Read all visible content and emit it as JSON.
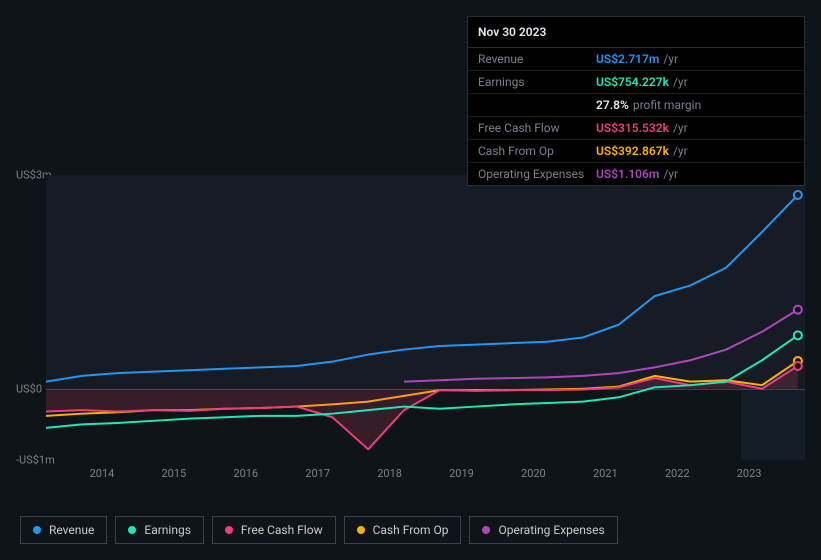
{
  "tooltip": {
    "date": "Nov 30 2023",
    "rows": [
      {
        "label": "Revenue",
        "value": "US$2.717m",
        "suffix": "/yr",
        "color": "#2196f3"
      },
      {
        "label": "Earnings",
        "value": "US$754.227k",
        "suffix": "/yr",
        "color": "#1de9b6"
      },
      {
        "label": "",
        "value": "27.8%",
        "suffix": "profit margin",
        "color": "#e5e9ee"
      },
      {
        "label": "Free Cash Flow",
        "value": "US$315.532k",
        "suffix": "/yr",
        "color": "#ec407a"
      },
      {
        "label": "Cash From Op",
        "value": "US$392.867k",
        "suffix": "/yr",
        "color": "#ffb300"
      },
      {
        "label": "Operating Expenses",
        "value": "US$1.106m",
        "suffix": "/yr",
        "color": "#ab47bc"
      }
    ]
  },
  "chart": {
    "type": "line",
    "background_color": "#0f1419",
    "grid_color": "#3a424d",
    "text_color": "#7a818d",
    "y_ticks": [
      {
        "label": "US$3m",
        "value": 3.0
      },
      {
        "label": "US$0",
        "value": 0.0
      },
      {
        "label": "-US$1m",
        "value": -1.0
      }
    ],
    "ylim": [
      -1.0,
      3.0
    ],
    "x_ticks": [
      "2014",
      "2015",
      "2016",
      "2017",
      "2018",
      "2019",
      "2020",
      "2021",
      "2022",
      "2023"
    ],
    "xlim": [
      2013.5,
      2024.1
    ],
    "highlight_band": {
      "from": 2023.2,
      "to": 2024.1
    },
    "line_width": 2,
    "label_fontsize": 11,
    "series": [
      {
        "name": "Revenue",
        "color": "#2196f3",
        "fill_opacity": 0,
        "points": [
          [
            2013.5,
            0.1
          ],
          [
            2014,
            0.18
          ],
          [
            2014.5,
            0.22
          ],
          [
            2015,
            0.24
          ],
          [
            2015.5,
            0.26
          ],
          [
            2016,
            0.28
          ],
          [
            2016.5,
            0.3
          ],
          [
            2017,
            0.32
          ],
          [
            2017.5,
            0.38
          ],
          [
            2018,
            0.48
          ],
          [
            2018.5,
            0.55
          ],
          [
            2019,
            0.6
          ],
          [
            2019.5,
            0.62
          ],
          [
            2020,
            0.64
          ],
          [
            2020.5,
            0.66
          ],
          [
            2021,
            0.72
          ],
          [
            2021.5,
            0.9
          ],
          [
            2022,
            1.3
          ],
          [
            2022.5,
            1.45
          ],
          [
            2023,
            1.7
          ],
          [
            2023.5,
            2.2
          ],
          [
            2024.0,
            2.72
          ]
        ]
      },
      {
        "name": "Earnings",
        "color": "#1de9b6",
        "fill_opacity": 0,
        "points": [
          [
            2013.5,
            -0.55
          ],
          [
            2014,
            -0.5
          ],
          [
            2014.5,
            -0.48
          ],
          [
            2015,
            -0.45
          ],
          [
            2015.5,
            -0.42
          ],
          [
            2016,
            -0.4
          ],
          [
            2016.5,
            -0.38
          ],
          [
            2017,
            -0.38
          ],
          [
            2017.5,
            -0.35
          ],
          [
            2018,
            -0.3
          ],
          [
            2018.5,
            -0.25
          ],
          [
            2019,
            -0.28
          ],
          [
            2019.5,
            -0.25
          ],
          [
            2020,
            -0.22
          ],
          [
            2020.5,
            -0.2
          ],
          [
            2021,
            -0.18
          ],
          [
            2021.5,
            -0.12
          ],
          [
            2022,
            0.02
          ],
          [
            2022.5,
            0.05
          ],
          [
            2023,
            0.1
          ],
          [
            2023.5,
            0.4
          ],
          [
            2024.0,
            0.75
          ]
        ]
      },
      {
        "name": "Free Cash Flow",
        "color": "#ec407a",
        "fill_opacity": 0.18,
        "points": [
          [
            2013.5,
            -0.32
          ],
          [
            2014,
            -0.3
          ],
          [
            2014.5,
            -0.32
          ],
          [
            2015,
            -0.3
          ],
          [
            2015.5,
            -0.31
          ],
          [
            2016,
            -0.28
          ],
          [
            2016.5,
            -0.27
          ],
          [
            2017,
            -0.25
          ],
          [
            2017.5,
            -0.4
          ],
          [
            2018,
            -0.85
          ],
          [
            2018.5,
            -0.3
          ],
          [
            2019,
            -0.02
          ],
          [
            2019.5,
            -0.03
          ],
          [
            2020,
            -0.02
          ],
          [
            2020.5,
            -0.02
          ],
          [
            2021,
            -0.01
          ],
          [
            2021.5,
            0.02
          ],
          [
            2022,
            0.15
          ],
          [
            2022.5,
            0.05
          ],
          [
            2023,
            0.1
          ],
          [
            2023.5,
            0.0
          ],
          [
            2024.0,
            0.32
          ]
        ]
      },
      {
        "name": "Cash From Op",
        "color": "#ffb300",
        "fill_opacity": 0,
        "points": [
          [
            2013.5,
            -0.38
          ],
          [
            2014,
            -0.35
          ],
          [
            2014.5,
            -0.33
          ],
          [
            2015,
            -0.3
          ],
          [
            2015.5,
            -0.3
          ],
          [
            2016,
            -0.28
          ],
          [
            2016.5,
            -0.27
          ],
          [
            2017,
            -0.25
          ],
          [
            2017.5,
            -0.22
          ],
          [
            2018,
            -0.18
          ],
          [
            2018.5,
            -0.1
          ],
          [
            2019,
            -0.02
          ],
          [
            2019.5,
            -0.02
          ],
          [
            2020,
            -0.02
          ],
          [
            2020.5,
            -0.01
          ],
          [
            2021,
            0.0
          ],
          [
            2021.5,
            0.03
          ],
          [
            2022,
            0.18
          ],
          [
            2022.5,
            0.1
          ],
          [
            2023,
            0.12
          ],
          [
            2023.5,
            0.05
          ],
          [
            2024.0,
            0.39
          ]
        ]
      },
      {
        "name": "Operating Expenses",
        "color": "#ab47bc",
        "fill_opacity": 0,
        "points": [
          [
            2018.5,
            0.1
          ],
          [
            2019,
            0.12
          ],
          [
            2019.5,
            0.14
          ],
          [
            2020,
            0.15
          ],
          [
            2020.5,
            0.16
          ],
          [
            2021,
            0.18
          ],
          [
            2021.5,
            0.22
          ],
          [
            2022,
            0.3
          ],
          [
            2022.5,
            0.4
          ],
          [
            2023,
            0.55
          ],
          [
            2023.5,
            0.8
          ],
          [
            2024.0,
            1.11
          ]
        ]
      }
    ],
    "legend": [
      {
        "label": "Revenue",
        "color": "#2196f3"
      },
      {
        "label": "Earnings",
        "color": "#1de9b6"
      },
      {
        "label": "Free Cash Flow",
        "color": "#ec407a"
      },
      {
        "label": "Cash From Op",
        "color": "#ffb300"
      },
      {
        "label": "Operating Expenses",
        "color": "#ab47bc"
      }
    ]
  }
}
